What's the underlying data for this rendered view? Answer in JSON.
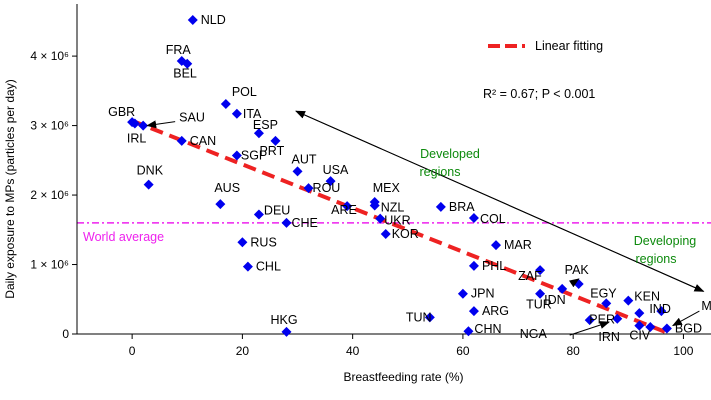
{
  "chart_data": {
    "type": "scatter",
    "title": "",
    "xlabel": "Breastfeeding rate (%)",
    "ylabel": "Daily exposure to MPs (particles per day)",
    "xlim": [
      -10,
      105
    ],
    "ylim": [
      0,
      4750000
    ],
    "x_ticks": [
      {
        "value": 0,
        "label": "0"
      },
      {
        "value": 20,
        "label": "20"
      },
      {
        "value": 40,
        "label": "40"
      },
      {
        "value": 60,
        "label": "60"
      },
      {
        "value": 80,
        "label": "80"
      },
      {
        "value": 100,
        "label": "100"
      }
    ],
    "y_ticks": [
      {
        "value": 0,
        "label": "0"
      },
      {
        "value": 1000000,
        "label": "1 × 10⁶"
      },
      {
        "value": 2000000,
        "label": "2 × 10⁶"
      },
      {
        "value": 3000000,
        "label": "3 × 10⁶"
      },
      {
        "value": 4000000,
        "label": "4 × 10⁶"
      }
    ],
    "marker_color": "#0000ee",
    "points": [
      {
        "label": "NLD",
        "x": 11,
        "y": 4520000
      },
      {
        "label": "FRA",
        "x": 9,
        "y": 3930000
      },
      {
        "label": "BEL",
        "x": 10,
        "y": 3890000
      },
      {
        "label": "POL",
        "x": 17,
        "y": 3310000
      },
      {
        "label": "ITA",
        "x": 19,
        "y": 3170000
      },
      {
        "label": "GBR",
        "x": 0,
        "y": 3050000
      },
      {
        "label": "SAU",
        "x": 2,
        "y": 3000000
      },
      {
        "label": "ESP",
        "x": 23,
        "y": 2890000
      },
      {
        "label": "IRL",
        "x": 0.5,
        "y": 3030000
      },
      {
        "label": "CAN",
        "x": 9,
        "y": 2780000
      },
      {
        "label": "PRT",
        "x": 26,
        "y": 2780000
      },
      {
        "label": "SGP",
        "x": 19,
        "y": 2570000
      },
      {
        "label": "AUT",
        "x": 30,
        "y": 2340000
      },
      {
        "label": "DNK",
        "x": 3,
        "y": 2150000
      },
      {
        "label": "USA",
        "x": 36,
        "y": 2200000
      },
      {
        "label": "ROU",
        "x": 32,
        "y": 2100000
      },
      {
        "label": "MEX",
        "x": 44,
        "y": 1900000
      },
      {
        "label": "AUS",
        "x": 16,
        "y": 1870000
      },
      {
        "label": "NZL",
        "x": 44,
        "y": 1850000
      },
      {
        "label": "ARE",
        "x": 39,
        "y": 1840000
      },
      {
        "label": "DEU",
        "x": 23,
        "y": 1720000
      },
      {
        "label": "BRA",
        "x": 56,
        "y": 1830000
      },
      {
        "label": "UKR",
        "x": 45,
        "y": 1660000
      },
      {
        "label": "COL",
        "x": 62,
        "y": 1670000
      },
      {
        "label": "CHE",
        "x": 28,
        "y": 1600000
      },
      {
        "label": "KOR",
        "x": 46,
        "y": 1440000
      },
      {
        "label": "RUS",
        "x": 20,
        "y": 1320000
      },
      {
        "label": "MAR",
        "x": 66,
        "y": 1280000
      },
      {
        "label": "CHL",
        "x": 21,
        "y": 970000
      },
      {
        "label": "PHL",
        "x": 62,
        "y": 980000
      },
      {
        "label": "ZAF",
        "x": 74,
        "y": 920000
      },
      {
        "label": "PAK",
        "x": 81,
        "y": 720000
      },
      {
        "label": "IDN",
        "x": 78,
        "y": 650000
      },
      {
        "label": "TUR",
        "x": 74,
        "y": 580000
      },
      {
        "label": "JPN",
        "x": 60,
        "y": 580000
      },
      {
        "label": "EGY",
        "x": 86,
        "y": 440000
      },
      {
        "label": "KEN",
        "x": 90,
        "y": 480000
      },
      {
        "label": "ARG",
        "x": 62,
        "y": 330000
      },
      {
        "label": "TUN",
        "x": 54,
        "y": 240000
      },
      {
        "label": "MYS",
        "x": 96,
        "y": 330000
      },
      {
        "label": "IND",
        "x": 92,
        "y": 300000
      },
      {
        "label": "PER",
        "x": 88,
        "y": 220000
      },
      {
        "label": "NGA",
        "x": 83,
        "y": 200000
      },
      {
        "label": "CIV",
        "x": 92,
        "y": 120000
      },
      {
        "label": "IRN",
        "x": 94,
        "y": 100000
      },
      {
        "label": "BGD",
        "x": 97,
        "y": 80000
      },
      {
        "label": "CHN",
        "x": 61,
        "y": 40000
      },
      {
        "label": "HKG",
        "x": 28,
        "y": 30000
      }
    ],
    "fit": {
      "label": "Linear fitting",
      "x": [
        0,
        97
      ],
      "y": [
        3070000,
        20000
      ],
      "color": "#ee2222",
      "stats": "R² = 0.67; P < 0.001"
    },
    "reference_line": {
      "label": "World average",
      "y": 1600000,
      "color": "#ee22ee"
    },
    "region_annotations": [
      {
        "label": "Developed",
        "color": "#0d8a0d"
      },
      {
        "label": "regions",
        "color": "#0d8a0d"
      },
      {
        "label": "Developing",
        "color": "#0d8a0d"
      },
      {
        "label": "regions",
        "color": "#0d8a0d"
      }
    ],
    "arrow": {
      "from": [
        75,
        1800000
      ],
      "to": [
        104,
        700000
      ],
      "start": [
        29,
        3150000
      ]
    }
  }
}
